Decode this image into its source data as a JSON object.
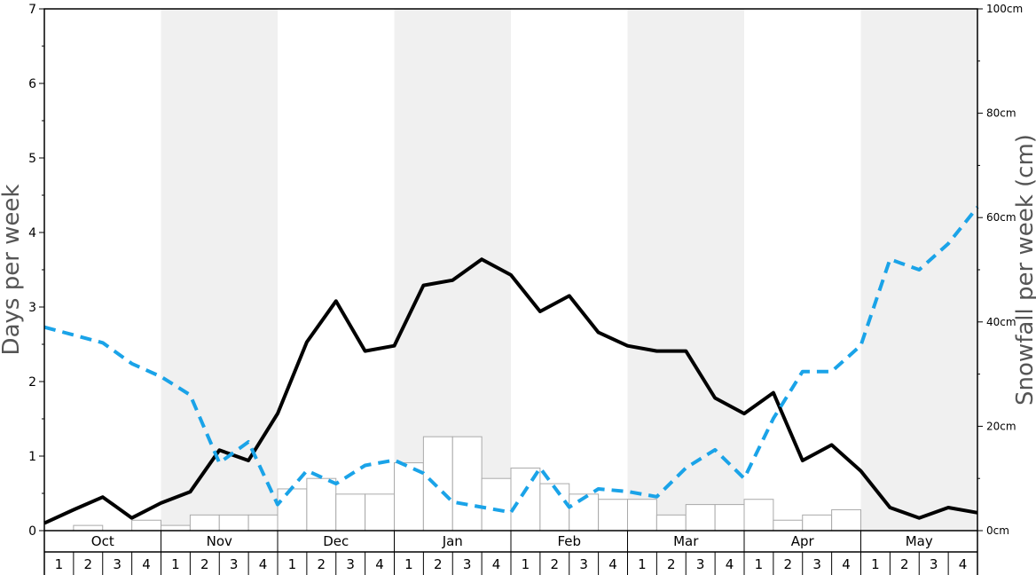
{
  "chart_data": {
    "type": "bar+line",
    "left_axis": {
      "label": "Days per week",
      "range": [
        0,
        7
      ],
      "ticks": [
        "0",
        "1",
        "2",
        "3",
        "4",
        "5",
        "6",
        "7"
      ]
    },
    "right_axis": {
      "label": "Snowfall per week (cm)",
      "range": [
        0,
        100
      ],
      "ticks": [
        "0cm",
        "20cm",
        "40cm",
        "60cm",
        "80cm",
        "100cm"
      ]
    },
    "months": [
      "Oct",
      "Nov",
      "Dec",
      "Jan",
      "Feb",
      "Mar",
      "Apr",
      "May"
    ],
    "week_labels": [
      "1",
      "2",
      "3",
      "4"
    ],
    "shaded_months": [
      "Nov",
      "Jan",
      "Mar",
      "May"
    ],
    "colors": {
      "shade": "#f0f0f0",
      "solid_line": "#000000",
      "dashed_line": "#1aa3e8",
      "bar_fill": "#ffffff",
      "bar_stroke": "#aaaaaa"
    },
    "series": [
      {
        "type": "bar",
        "axis": "right",
        "values": [
          0.0,
          1.0,
          0.0,
          2.0,
          1.0,
          3.0,
          3.0,
          3.0,
          8.0,
          10.0,
          7.0,
          7.0,
          13.0,
          18.0,
          18.0,
          10.0,
          12.0,
          9.0,
          7.0,
          6.0,
          6.0,
          3.0,
          5.0,
          5.0,
          6.0,
          2.0,
          3.0,
          4.0,
          0.0,
          0.0,
          0.0,
          0.0
        ]
      },
      {
        "type": "line",
        "style": "solid",
        "axis": "left",
        "values": [
          0.1,
          0.28,
          0.45,
          0.17,
          0.37,
          0.52,
          1.08,
          0.94,
          1.57,
          2.53,
          3.08,
          2.41,
          2.48,
          3.29,
          3.36,
          3.64,
          3.43,
          2.94,
          3.15,
          2.66,
          2.48,
          2.41,
          2.41,
          1.78,
          1.57,
          1.85,
          0.94,
          1.15,
          0.8,
          0.31,
          0.17,
          0.31,
          0.24
        ]
      },
      {
        "type": "line",
        "style": "dashed",
        "axis": "right",
        "values": [
          39.0,
          37.5,
          36.0,
          32.0,
          29.5,
          26.0,
          13.0,
          17.0,
          5.0,
          11.5,
          9.0,
          12.5,
          13.5,
          11.0,
          5.5,
          4.5,
          3.5,
          12.0,
          4.5,
          8.0,
          7.5,
          6.5,
          12.0,
          15.5,
          10.0,
          21.5,
          30.5,
          30.5,
          35.5,
          52.0,
          50.0,
          55.0,
          62.0
        ]
      }
    ]
  }
}
